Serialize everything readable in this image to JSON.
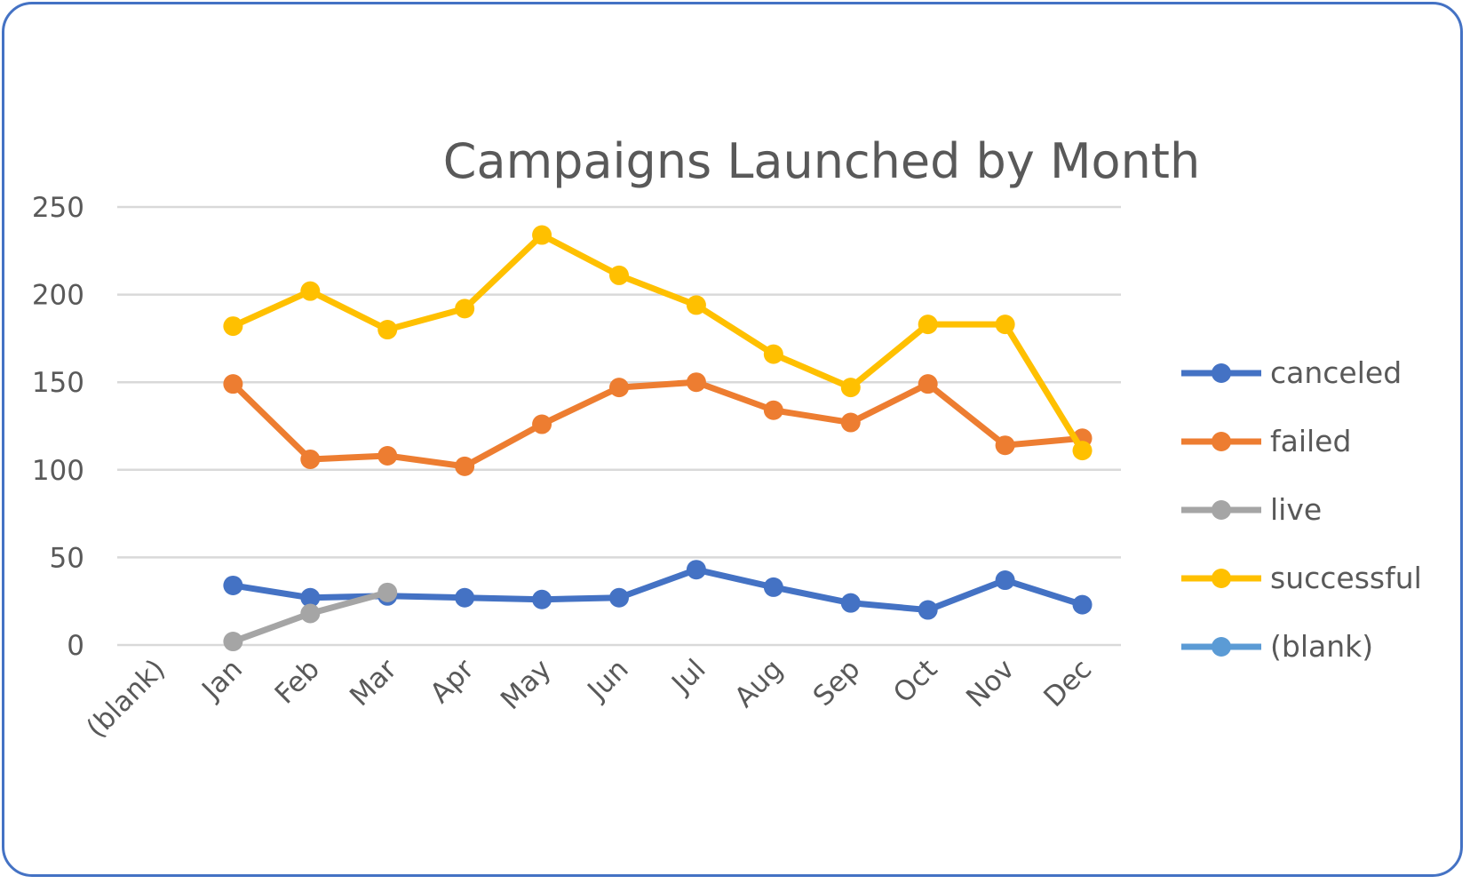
{
  "chart_data": {
    "type": "line",
    "title": "Campaigns Launched by Month",
    "xlabel": "",
    "ylabel": "",
    "categories": [
      "(blank)",
      "Jan",
      "Feb",
      "Mar",
      "Apr",
      "May",
      "Jun",
      "Jul",
      "Aug",
      "Sep",
      "Oct",
      "Nov",
      "Dec"
    ],
    "ylim": [
      0,
      250
    ],
    "yticks": [
      0,
      50,
      100,
      150,
      200,
      250
    ],
    "grid": true,
    "legend_position": "right",
    "series": [
      {
        "name": "canceled",
        "color": "#4472c4",
        "values": [
          null,
          34,
          27,
          28,
          27,
          26,
          27,
          43,
          33,
          24,
          20,
          37,
          23
        ]
      },
      {
        "name": "failed",
        "color": "#ed7d31",
        "values": [
          null,
          149,
          106,
          108,
          102,
          126,
          147,
          150,
          134,
          127,
          149,
          114,
          118
        ]
      },
      {
        "name": "live",
        "color": "#a5a5a5",
        "values": [
          null,
          2,
          18,
          30,
          null,
          null,
          null,
          null,
          null,
          null,
          null,
          null,
          null
        ]
      },
      {
        "name": "successful",
        "color": "#ffc000",
        "values": [
          null,
          182,
          202,
          180,
          192,
          234,
          211,
          194,
          166,
          147,
          183,
          183,
          111
        ]
      },
      {
        "name": "(blank)",
        "color": "#5b9bd5",
        "values": [
          null,
          null,
          null,
          null,
          null,
          null,
          null,
          null,
          null,
          null,
          null,
          null,
          null
        ]
      }
    ]
  }
}
